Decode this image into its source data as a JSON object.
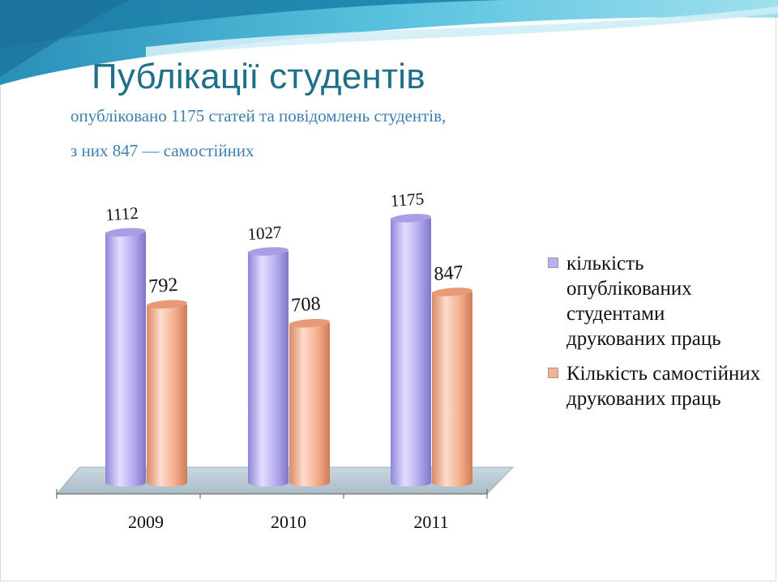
{
  "title": "Публікації студентів",
  "subtitle": {
    "line1": "опубліковано 1175 статей та повідомлень студентів,",
    "line2": "з них 847 — самостійних"
  },
  "colors": {
    "title": "#1f6f8b",
    "subtitle": "#3d7fb0",
    "series_published": "#b7b0f0",
    "series_independent": "#f6b394",
    "floor": "#bccdd6"
  },
  "chart_data": {
    "type": "bar",
    "categories": [
      "2009",
      "2010",
      "2011"
    ],
    "series": [
      {
        "name": "кількість опублікованих студентами друкованих праць",
        "values": [
          1112,
          1027,
          1175
        ]
      },
      {
        "name": "Кількість самостійних друкованих праць",
        "values": [
          792,
          708,
          847
        ]
      }
    ],
    "data_labels": [
      [
        "1112",
        "1027",
        "1175"
      ],
      [
        "792",
        "708",
        "847"
      ]
    ],
    "ylim": [
      0,
      1200
    ],
    "grid": false,
    "legend_position": "right",
    "title": "",
    "xlabel": "",
    "ylabel": ""
  }
}
